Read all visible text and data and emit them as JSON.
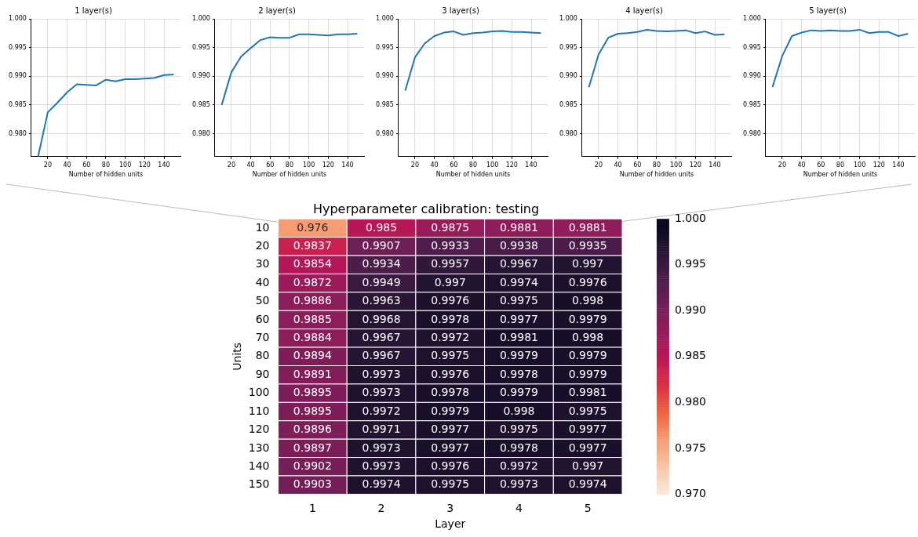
{
  "chart_data": [
    {
      "type": "line",
      "title": "1 layer(s)",
      "xlabel": "Number of hidden units",
      "x": [
        10,
        20,
        30,
        40,
        50,
        60,
        70,
        80,
        90,
        100,
        110,
        120,
        130,
        140,
        150
      ],
      "xlim": [
        3,
        157
      ],
      "xticks": [
        20,
        40,
        60,
        80,
        100,
        120,
        140
      ],
      "ylim": [
        0.976,
        1.0
      ],
      "yticks": [
        {
          "value": 0.98,
          "label": "0.980"
        },
        {
          "value": 0.985,
          "label": "0.985"
        },
        {
          "value": 0.99,
          "label": "0.990"
        },
        {
          "value": 0.995,
          "label": "0.995"
        },
        {
          "value": 1.0,
          "label": "1.000"
        }
      ],
      "grid": true,
      "series": [
        {
          "color": "#1f77b4",
          "values": [
            0.976,
            0.9837,
            0.9854,
            0.9872,
            0.9886,
            0.9885,
            0.9884,
            0.9894,
            0.9891,
            0.9895,
            0.9895,
            0.9896,
            0.9897,
            0.9902,
            0.9903
          ]
        }
      ]
    },
    {
      "type": "line",
      "title": "2 layer(s)",
      "xlabel": "Number of hidden units",
      "x": [
        10,
        20,
        30,
        40,
        50,
        60,
        70,
        80,
        90,
        100,
        110,
        120,
        130,
        140,
        150
      ],
      "xlim": [
        3,
        157
      ],
      "xticks": [
        20,
        40,
        60,
        80,
        100,
        120,
        140
      ],
      "ylim": [
        0.976,
        1.0
      ],
      "yticks": [
        {
          "value": 0.98,
          "label": "0.980"
        },
        {
          "value": 0.985,
          "label": "0.985"
        },
        {
          "value": 0.99,
          "label": "0.990"
        },
        {
          "value": 0.995,
          "label": "0.995"
        },
        {
          "value": 1.0,
          "label": "1.000"
        }
      ],
      "grid": true,
      "series": [
        {
          "color": "#1f77b4",
          "values": [
            0.985,
            0.9907,
            0.9934,
            0.9949,
            0.9963,
            0.9968,
            0.9967,
            0.9967,
            0.9973,
            0.9973,
            0.9972,
            0.9971,
            0.9973,
            0.9973,
            0.9974
          ]
        }
      ]
    },
    {
      "type": "line",
      "title": "3 layer(s)",
      "xlabel": "Number of hidden units",
      "x": [
        10,
        20,
        30,
        40,
        50,
        60,
        70,
        80,
        90,
        100,
        110,
        120,
        130,
        140,
        150
      ],
      "xlim": [
        3,
        157
      ],
      "xticks": [
        20,
        40,
        60,
        80,
        100,
        120,
        140
      ],
      "ylim": [
        0.976,
        1.0
      ],
      "yticks": [
        {
          "value": 0.98,
          "label": "0.980"
        },
        {
          "value": 0.985,
          "label": "0.985"
        },
        {
          "value": 0.99,
          "label": "0.990"
        },
        {
          "value": 0.995,
          "label": "0.995"
        },
        {
          "value": 1.0,
          "label": "1.000"
        }
      ],
      "grid": true,
      "series": [
        {
          "color": "#1f77b4",
          "values": [
            0.9875,
            0.9933,
            0.9957,
            0.997,
            0.9976,
            0.9978,
            0.9972,
            0.9975,
            0.9976,
            0.9978,
            0.9979,
            0.9977,
            0.9977,
            0.9976,
            0.9975
          ]
        }
      ]
    },
    {
      "type": "line",
      "title": "4 layer(s)",
      "xlabel": "Number of hidden units",
      "x": [
        10,
        20,
        30,
        40,
        50,
        60,
        70,
        80,
        90,
        100,
        110,
        120,
        130,
        140,
        150
      ],
      "xlim": [
        3,
        157
      ],
      "xticks": [
        20,
        40,
        60,
        80,
        100,
        120,
        140
      ],
      "ylim": [
        0.976,
        1.0
      ],
      "yticks": [
        {
          "value": 0.98,
          "label": "0.980"
        },
        {
          "value": 0.985,
          "label": "0.985"
        },
        {
          "value": 0.99,
          "label": "0.990"
        },
        {
          "value": 0.995,
          "label": "0.995"
        },
        {
          "value": 1.0,
          "label": "1.000"
        }
      ],
      "grid": true,
      "series": [
        {
          "color": "#1f77b4",
          "values": [
            0.9881,
            0.9938,
            0.9967,
            0.9974,
            0.9975,
            0.9977,
            0.9981,
            0.9979,
            0.9978,
            0.9979,
            0.998,
            0.9975,
            0.9978,
            0.9972,
            0.9973
          ]
        }
      ]
    },
    {
      "type": "line",
      "title": "5 layer(s)",
      "xlabel": "Number of hidden units",
      "x": [
        10,
        20,
        30,
        40,
        50,
        60,
        70,
        80,
        90,
        100,
        110,
        120,
        130,
        140,
        150
      ],
      "xlim": [
        3,
        157
      ],
      "xticks": [
        20,
        40,
        60,
        80,
        100,
        120,
        140
      ],
      "ylim": [
        0.976,
        1.0
      ],
      "yticks": [
        {
          "value": 0.98,
          "label": "0.980"
        },
        {
          "value": 0.985,
          "label": "0.985"
        },
        {
          "value": 0.99,
          "label": "0.990"
        },
        {
          "value": 0.995,
          "label": "0.995"
        },
        {
          "value": 1.0,
          "label": "1.000"
        }
      ],
      "grid": true,
      "series": [
        {
          "color": "#1f77b4",
          "values": [
            0.9881,
            0.9935,
            0.997,
            0.9976,
            0.998,
            0.9979,
            0.998,
            0.9979,
            0.9979,
            0.9981,
            0.9975,
            0.9977,
            0.9977,
            0.997,
            0.9974
          ]
        }
      ]
    },
    {
      "type": "heatmap",
      "title": "Hyperparameter calibration: testing",
      "xlabel": "Layer",
      "ylabel": "Units",
      "categories": [
        "1",
        "2",
        "3",
        "4",
        "5"
      ],
      "y_categories": [
        "10",
        "20",
        "30",
        "40",
        "50",
        "60",
        "70",
        "80",
        "90",
        "100",
        "110",
        "120",
        "130",
        "140",
        "150"
      ],
      "cells": [
        [
          0.976,
          0.985,
          0.9875,
          0.9881,
          0.9881
        ],
        [
          0.9837,
          0.9907,
          0.9933,
          0.9938,
          0.9935
        ],
        [
          0.9854,
          0.9934,
          0.9957,
          0.9967,
          0.997
        ],
        [
          0.9872,
          0.9949,
          0.997,
          0.9974,
          0.9976
        ],
        [
          0.9886,
          0.9963,
          0.9976,
          0.9975,
          0.998
        ],
        [
          0.9885,
          0.9968,
          0.9978,
          0.9977,
          0.9979
        ],
        [
          0.9884,
          0.9967,
          0.9972,
          0.9981,
          0.998
        ],
        [
          0.9894,
          0.9967,
          0.9975,
          0.9979,
          0.9979
        ],
        [
          0.9891,
          0.9973,
          0.9976,
          0.9978,
          0.9979
        ],
        [
          0.9895,
          0.9973,
          0.9978,
          0.9979,
          0.9981
        ],
        [
          0.9895,
          0.9972,
          0.9979,
          0.998,
          0.9975
        ],
        [
          0.9896,
          0.9971,
          0.9977,
          0.9975,
          0.9977
        ],
        [
          0.9897,
          0.9973,
          0.9977,
          0.9978,
          0.9977
        ],
        [
          0.9902,
          0.9973,
          0.9976,
          0.9972,
          0.997
        ],
        [
          0.9903,
          0.9974,
          0.9975,
          0.9973,
          0.9974
        ]
      ],
      "clim": [
        0.97,
        1.0
      ],
      "cticks": [
        {
          "value": 0.97,
          "label": "0.970"
        },
        {
          "value": 0.975,
          "label": "0.975"
        },
        {
          "value": 0.98,
          "label": "0.980"
        },
        {
          "value": 0.985,
          "label": "0.985"
        },
        {
          "value": 0.99,
          "label": "0.990"
        },
        {
          "value": 0.995,
          "label": "0.995"
        },
        {
          "value": 1.0,
          "label": "1.000"
        }
      ],
      "data_labels": true
    }
  ]
}
